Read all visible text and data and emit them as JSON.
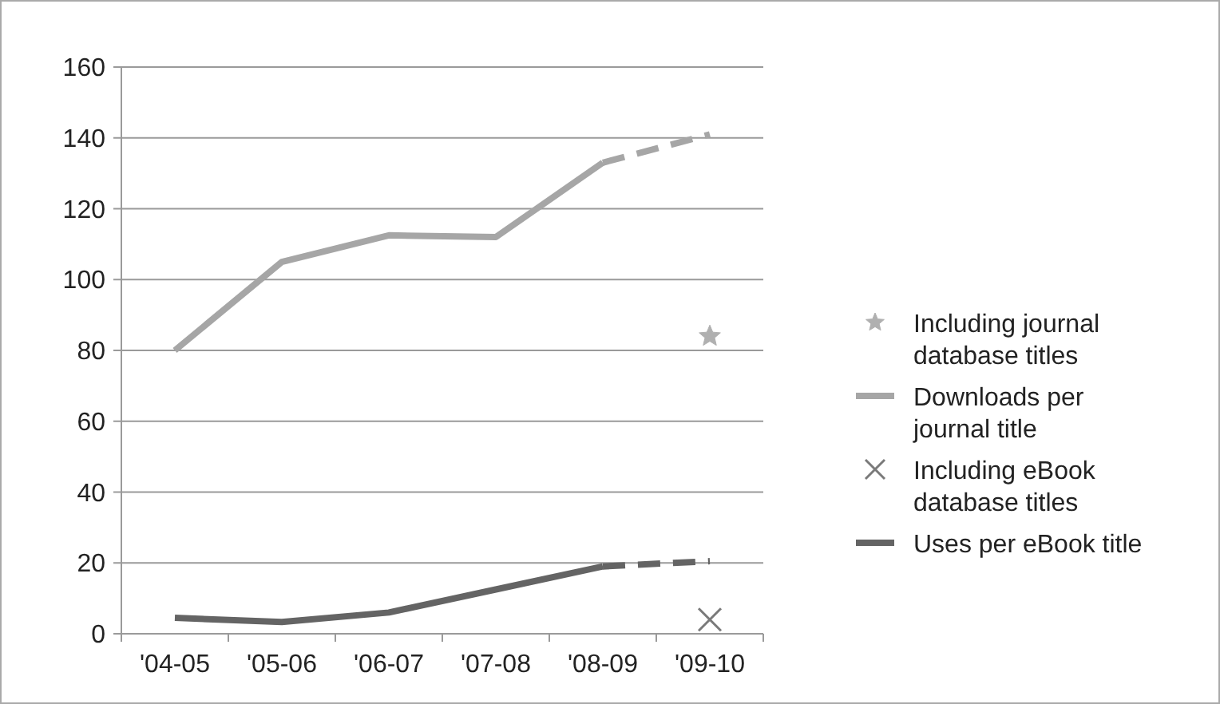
{
  "chart_data": {
    "type": "line",
    "categories": [
      "'04-05",
      "'05-06",
      "'06-07",
      "'07-08",
      "'08-09",
      "'09-10"
    ],
    "series": [
      {
        "name": "Including journal database titles",
        "type": "scatter",
        "marker": "star",
        "color": "#b0b0b0",
        "x": [
          "'09-10"
        ],
        "values": [
          84
        ]
      },
      {
        "name": "Downloads per journal title",
        "color": "#a6a6a6",
        "line_style": "solid",
        "values": [
          80,
          105,
          112.5,
          112,
          133,
          null
        ]
      },
      {
        "color": "#a6a6a6",
        "line_style": "dashed",
        "values": [
          null,
          null,
          null,
          null,
          133,
          141
        ]
      },
      {
        "name": "Including eBook database titles",
        "type": "scatter",
        "marker": "cross",
        "color": "#7a7a7a",
        "x": [
          "'09-10"
        ],
        "values": [
          4
        ]
      },
      {
        "name": "Uses per eBook title",
        "color": "#646464",
        "line_style": "solid",
        "values": [
          4.5,
          3.3,
          6,
          12.5,
          19,
          null
        ]
      },
      {
        "color": "#646464",
        "line_style": "dashed",
        "values": [
          null,
          null,
          null,
          null,
          19,
          20.5
        ]
      }
    ],
    "ylim": [
      0,
      160
    ],
    "yticks": [
      0,
      20,
      40,
      60,
      80,
      100,
      120,
      140,
      160
    ],
    "grid": "y",
    "legend": "right"
  }
}
